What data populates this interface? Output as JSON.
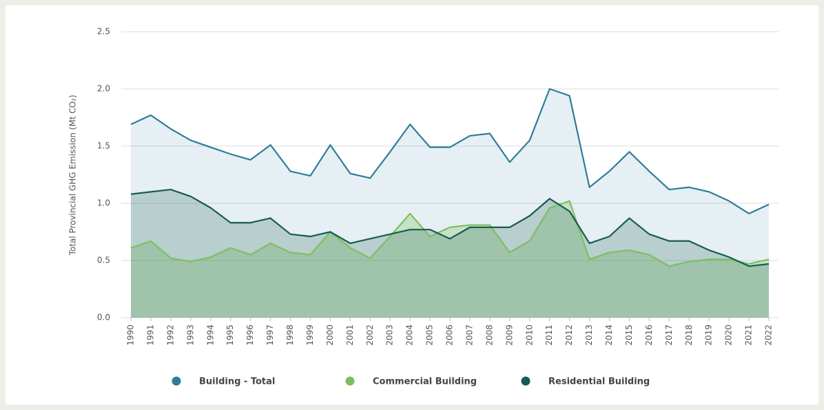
{
  "chart_data": {
    "type": "area",
    "y_label": "Total Provincial GHG Emission (Mt CO₂)",
    "categories": [
      "1990",
      "1991",
      "1992",
      "1993",
      "1994",
      "1995",
      "1996",
      "1997",
      "1998",
      "1999",
      "2000",
      "2001",
      "2002",
      "2003",
      "2004",
      "2005",
      "2006",
      "2007",
      "2008",
      "2009",
      "2010",
      "2011",
      "2012",
      "2013",
      "2014",
      "2015",
      "2016",
      "2017",
      "2018",
      "2019",
      "2020",
      "2021",
      "2022"
    ],
    "series": [
      {
        "name": "Building - Total",
        "color": "#2e7d99",
        "values": [
          1.69,
          1.77,
          1.65,
          1.55,
          1.49,
          1.43,
          1.38,
          1.51,
          1.28,
          1.24,
          1.51,
          1.26,
          1.22,
          1.45,
          1.69,
          1.49,
          1.49,
          1.59,
          1.61,
          1.36,
          1.55,
          2.0,
          1.94,
          1.14,
          1.28,
          1.45,
          1.28,
          1.12,
          1.14,
          1.1,
          1.02,
          0.91,
          0.99
        ]
      },
      {
        "name": "Commercial Building",
        "color": "#7dbf5e",
        "values": [
          0.61,
          0.67,
          0.52,
          0.49,
          0.53,
          0.61,
          0.55,
          0.65,
          0.57,
          0.55,
          0.75,
          0.61,
          0.52,
          0.71,
          0.91,
          0.71,
          0.79,
          0.81,
          0.81,
          0.57,
          0.67,
          0.96,
          1.02,
          0.51,
          0.57,
          0.59,
          0.55,
          0.45,
          0.49,
          0.51,
          0.51,
          0.47,
          0.51
        ]
      },
      {
        "name": "Residential Building",
        "color": "#165c52",
        "values": [
          1.08,
          1.1,
          1.12,
          1.06,
          0.96,
          0.83,
          0.83,
          0.87,
          0.73,
          0.71,
          0.75,
          0.65,
          0.69,
          0.73,
          0.77,
          0.77,
          0.69,
          0.79,
          0.79,
          0.79,
          0.89,
          1.04,
          0.93,
          0.65,
          0.71,
          0.87,
          0.73,
          0.67,
          0.67,
          0.59,
          0.53,
          0.45,
          0.47
        ]
      }
    ],
    "ylim": [
      0,
      2.5
    ],
    "yticks": [
      {
        "value": 0,
        "label": "0.0"
      },
      0.5,
      {
        "value": 1,
        "label": "1.0"
      },
      1.5,
      {
        "value": 2,
        "label": "2.0"
      },
      2.5
    ],
    "grid": true
  }
}
